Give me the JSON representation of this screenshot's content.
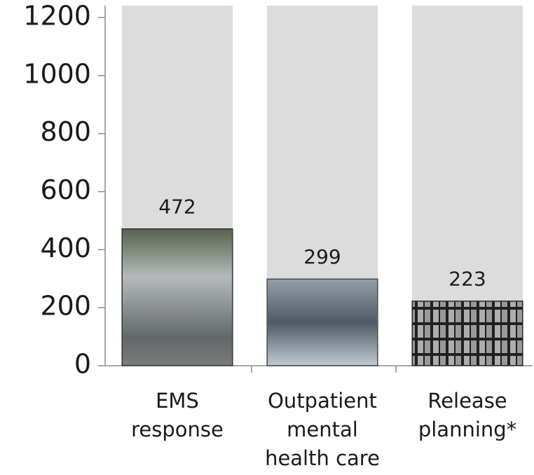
{
  "chart_data": {
    "type": "bar",
    "categories": [
      "EMS response",
      "Outpatient mental health care",
      "Release planning*"
    ],
    "values": [
      472,
      299,
      223
    ],
    "colors": [
      "#4a4f52",
      "#7d8a96",
      "#2e2e2e"
    ],
    "ylim": [
      0,
      1200
    ],
    "yticks": [
      0,
      200,
      400,
      600,
      800,
      1000,
      1200
    ]
  }
}
